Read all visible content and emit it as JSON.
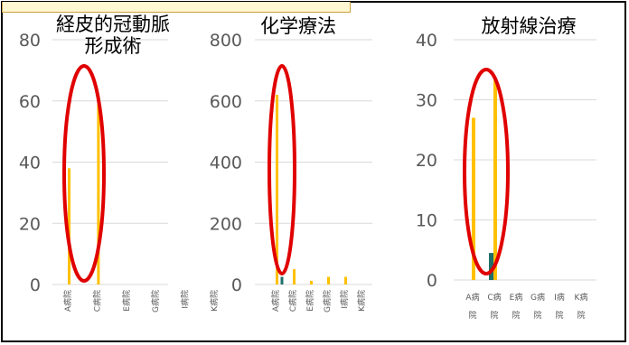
{
  "colors": {
    "gridline": "#d9d9d9",
    "series_a": "#ffc000",
    "series_b": "#1f6f6b",
    "highlight": "#e00000",
    "frame": "#000000"
  },
  "chart_data": [
    {
      "type": "bar",
      "title_lines": [
        "経皮的冠動脈",
        "形成術"
      ],
      "ylim": [
        0,
        80
      ],
      "yticks": [
        "0",
        "20",
        "40",
        "60",
        "80"
      ],
      "categories": [
        "A病院",
        "",
        "C病院",
        "",
        "E病院",
        "",
        "G病院",
        "",
        "I病院",
        "",
        "K病院"
      ],
      "labels_vertical": true,
      "series": [
        {
          "values": [
            38,
            0,
            59,
            0,
            0,
            0,
            0,
            0,
            0,
            0,
            0
          ]
        },
        {
          "values": [
            0,
            0,
            0,
            0,
            0,
            0,
            0,
            0,
            0,
            0,
            0
          ]
        }
      ],
      "highlight_category": 1
    },
    {
      "type": "bar",
      "title_lines": [
        "化学療法"
      ],
      "ylim": [
        0,
        800
      ],
      "yticks": [
        "0",
        "200",
        "400",
        "600",
        "800"
      ],
      "categories": [
        "A病院",
        "",
        "C病院",
        "",
        "E病院",
        "",
        "G病院",
        "",
        "I病院",
        "",
        "K病院"
      ],
      "labels_vertical": true,
      "series": [
        {
          "values": [
            620,
            0,
            50,
            0,
            12,
            0,
            25,
            0,
            25,
            0,
            0
          ]
        },
        {
          "values": [
            0,
            25,
            0,
            0,
            0,
            0,
            0,
            0,
            0,
            0,
            0
          ]
        }
      ],
      "highlight_category": 0
    },
    {
      "type": "bar",
      "title_lines": [
        "放射線治療"
      ],
      "ylim": [
        0,
        40
      ],
      "yticks": [
        "0",
        "10",
        "20",
        "30",
        "40"
      ],
      "categories": [
        "A病院",
        "C病院",
        "E病院",
        "G病院",
        "I病院",
        "K病院"
      ],
      "labels_vertical": false,
      "series": [
        {
          "values": [
            27,
            33.5,
            0,
            0,
            0,
            0
          ]
        },
        {
          "values": [
            0,
            4.5,
            0,
            0,
            0,
            0
          ]
        }
      ],
      "highlight_category": 0
    }
  ]
}
